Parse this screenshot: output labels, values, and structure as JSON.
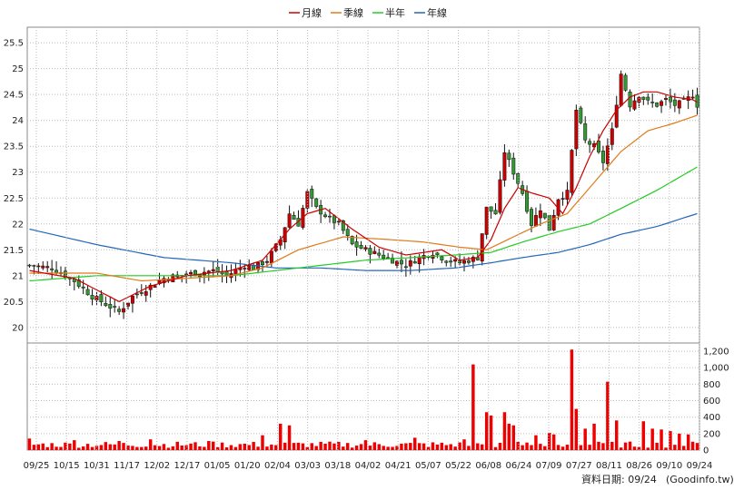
{
  "chart_data": [
    {
      "type": "line",
      "panel": "price",
      "subtype": "candlestick",
      "ylim": [
        19.7,
        25.8
      ],
      "yticks": [
        20,
        20.5,
        21,
        21.5,
        22,
        22.5,
        23,
        23.5,
        24,
        24.5,
        25,
        25.5
      ],
      "xticks": [
        "09/25",
        "10/15",
        "10/31",
        "11/17",
        "12/02",
        "12/17",
        "01/05",
        "01/20",
        "02/04",
        "03/03",
        "03/18",
        "04/02",
        "04/21",
        "05/07",
        "05/22",
        "06/08",
        "06/24",
        "07/09",
        "07/27",
        "08/11",
        "08/26",
        "09/10",
        "09/24"
      ],
      "grid": true,
      "legend": [
        {
          "label": "月線",
          "color": "#cc0000"
        },
        {
          "label": "季線",
          "color": "#e07a1a"
        },
        {
          "label": "半年",
          "color": "#22cc22"
        },
        {
          "label": "年線",
          "color": "#2266bb"
        }
      ],
      "legend_position": "top-center",
      "up_color": "#cc0000",
      "down_color": "#339933",
      "price_anchors": [
        [
          0,
          21.2
        ],
        [
          5,
          21.15
        ],
        [
          10,
          20.9
        ],
        [
          14,
          20.6
        ],
        [
          18,
          20.4
        ],
        [
          20,
          20.3
        ],
        [
          23,
          20.6
        ],
        [
          27,
          20.8
        ],
        [
          30,
          20.95
        ],
        [
          33,
          21.0
        ],
        [
          37,
          21.05
        ],
        [
          41,
          21.1
        ],
        [
          44,
          21.0
        ],
        [
          48,
          21.2
        ],
        [
          50,
          21.15
        ],
        [
          53,
          21.3
        ],
        [
          56,
          21.7
        ],
        [
          58,
          22.2
        ],
        [
          60,
          22.0
        ],
        [
          62,
          22.6
        ],
        [
          64,
          22.3
        ],
        [
          67,
          22.1
        ],
        [
          69,
          22.0
        ],
        [
          72,
          21.6
        ],
        [
          75,
          21.5
        ],
        [
          78,
          21.4
        ],
        [
          81,
          21.3
        ],
        [
          84,
          21.2
        ],
        [
          87,
          21.35
        ],
        [
          90,
          21.45
        ],
        [
          93,
          21.3
        ],
        [
          96,
          21.25
        ],
        [
          98,
          21.3
        ],
        [
          100,
          21.35
        ],
        [
          102,
          22.3
        ],
        [
          104,
          22.2
        ],
        [
          106,
          23.4
        ],
        [
          108,
          23.0
        ],
        [
          110,
          22.6
        ],
        [
          112,
          22.0
        ],
        [
          114,
          22.3
        ],
        [
          116,
          21.9
        ],
        [
          118,
          22.5
        ],
        [
          120,
          22.6
        ],
        [
          122,
          24.2
        ],
        [
          124,
          23.6
        ],
        [
          126,
          23.5
        ],
        [
          128,
          23.2
        ],
        [
          130,
          23.8
        ],
        [
          132,
          24.9
        ],
        [
          134,
          24.3
        ],
        [
          136,
          24.5
        ],
        [
          138,
          24.35
        ],
        [
          140,
          24.3
        ],
        [
          142,
          24.4
        ],
        [
          144,
          24.3
        ],
        [
          146,
          24.35
        ],
        [
          148,
          24.5
        ],
        [
          149,
          24.3
        ]
      ],
      "ma_month": [
        [
          0,
          21.1
        ],
        [
          10,
          20.95
        ],
        [
          20,
          20.5
        ],
        [
          27,
          20.8
        ],
        [
          35,
          21.0
        ],
        [
          45,
          21.1
        ],
        [
          52,
          21.3
        ],
        [
          58,
          21.9
        ],
        [
          62,
          22.2
        ],
        [
          66,
          22.3
        ],
        [
          72,
          21.9
        ],
        [
          78,
          21.55
        ],
        [
          84,
          21.4
        ],
        [
          88,
          21.45
        ],
        [
          92,
          21.5
        ],
        [
          96,
          21.3
        ],
        [
          100,
          21.35
        ],
        [
          103,
          21.7
        ],
        [
          106,
          22.3
        ],
        [
          109,
          22.7
        ],
        [
          112,
          22.6
        ],
        [
          116,
          22.5
        ],
        [
          119,
          22.2
        ],
        [
          122,
          22.7
        ],
        [
          125,
          23.3
        ],
        [
          128,
          23.8
        ],
        [
          131,
          24.2
        ],
        [
          134,
          24.45
        ],
        [
          137,
          24.55
        ],
        [
          140,
          24.55
        ],
        [
          144,
          24.45
        ],
        [
          148,
          24.4
        ],
        [
          149,
          24.35
        ]
      ],
      "ma_quarter": [
        [
          0,
          21.05
        ],
        [
          15,
          21.05
        ],
        [
          25,
          20.9
        ],
        [
          35,
          20.95
        ],
        [
          45,
          21.0
        ],
        [
          52,
          21.15
        ],
        [
          60,
          21.5
        ],
        [
          70,
          21.75
        ],
        [
          80,
          21.7
        ],
        [
          88,
          21.65
        ],
        [
          96,
          21.55
        ],
        [
          102,
          21.5
        ],
        [
          108,
          21.75
        ],
        [
          114,
          22.0
        ],
        [
          120,
          22.2
        ],
        [
          126,
          22.8
        ],
        [
          132,
          23.4
        ],
        [
          138,
          23.8
        ],
        [
          144,
          23.95
        ],
        [
          149,
          24.1
        ]
      ],
      "ma_halfyear": [
        [
          0,
          20.9
        ],
        [
          15,
          21.0
        ],
        [
          30,
          21.0
        ],
        [
          45,
          21.0
        ],
        [
          55,
          21.1
        ],
        [
          65,
          21.2
        ],
        [
          75,
          21.3
        ],
        [
          85,
          21.35
        ],
        [
          95,
          21.4
        ],
        [
          103,
          21.45
        ],
        [
          110,
          21.65
        ],
        [
          118,
          21.85
        ],
        [
          125,
          22.0
        ],
        [
          132,
          22.3
        ],
        [
          140,
          22.65
        ],
        [
          149,
          23.1
        ]
      ],
      "ma_year": [
        [
          0,
          21.9
        ],
        [
          15,
          21.6
        ],
        [
          30,
          21.35
        ],
        [
          45,
          21.25
        ],
        [
          55,
          21.15
        ],
        [
          65,
          21.15
        ],
        [
          75,
          21.1
        ],
        [
          85,
          21.1
        ],
        [
          95,
          21.15
        ],
        [
          103,
          21.25
        ],
        [
          110,
          21.35
        ],
        [
          118,
          21.45
        ],
        [
          125,
          21.6
        ],
        [
          132,
          21.8
        ],
        [
          140,
          21.95
        ],
        [
          149,
          22.2
        ]
      ]
    },
    {
      "type": "bar",
      "panel": "volume",
      "ylim": [
        0,
        1300
      ],
      "yticks": [
        "0",
        "200",
        "400",
        "600",
        "800",
        "1,000",
        "1,200"
      ],
      "color": "#ee0000",
      "base_level": 70,
      "spikes": [
        [
          0,
          140
        ],
        [
          10,
          120
        ],
        [
          20,
          110
        ],
        [
          27,
          130
        ],
        [
          40,
          110
        ],
        [
          52,
          180
        ],
        [
          56,
          320
        ],
        [
          58,
          300
        ],
        [
          75,
          120
        ],
        [
          86,
          150
        ],
        [
          97,
          130
        ],
        [
          99,
          1040
        ],
        [
          102,
          460
        ],
        [
          103,
          420
        ],
        [
          106,
          460
        ],
        [
          107,
          320
        ],
        [
          108,
          300
        ],
        [
          113,
          180
        ],
        [
          116,
          210
        ],
        [
          117,
          190
        ],
        [
          121,
          1220
        ],
        [
          122,
          500
        ],
        [
          124,
          260
        ],
        [
          126,
          320
        ],
        [
          129,
          830
        ],
        [
          131,
          360
        ],
        [
          137,
          350
        ],
        [
          139,
          260
        ],
        [
          141,
          250
        ],
        [
          143,
          230
        ],
        [
          145,
          200
        ],
        [
          147,
          190
        ]
      ]
    }
  ],
  "footer": {
    "label": "資料日期: 09/24",
    "source": "(Goodinfo.tw)"
  }
}
